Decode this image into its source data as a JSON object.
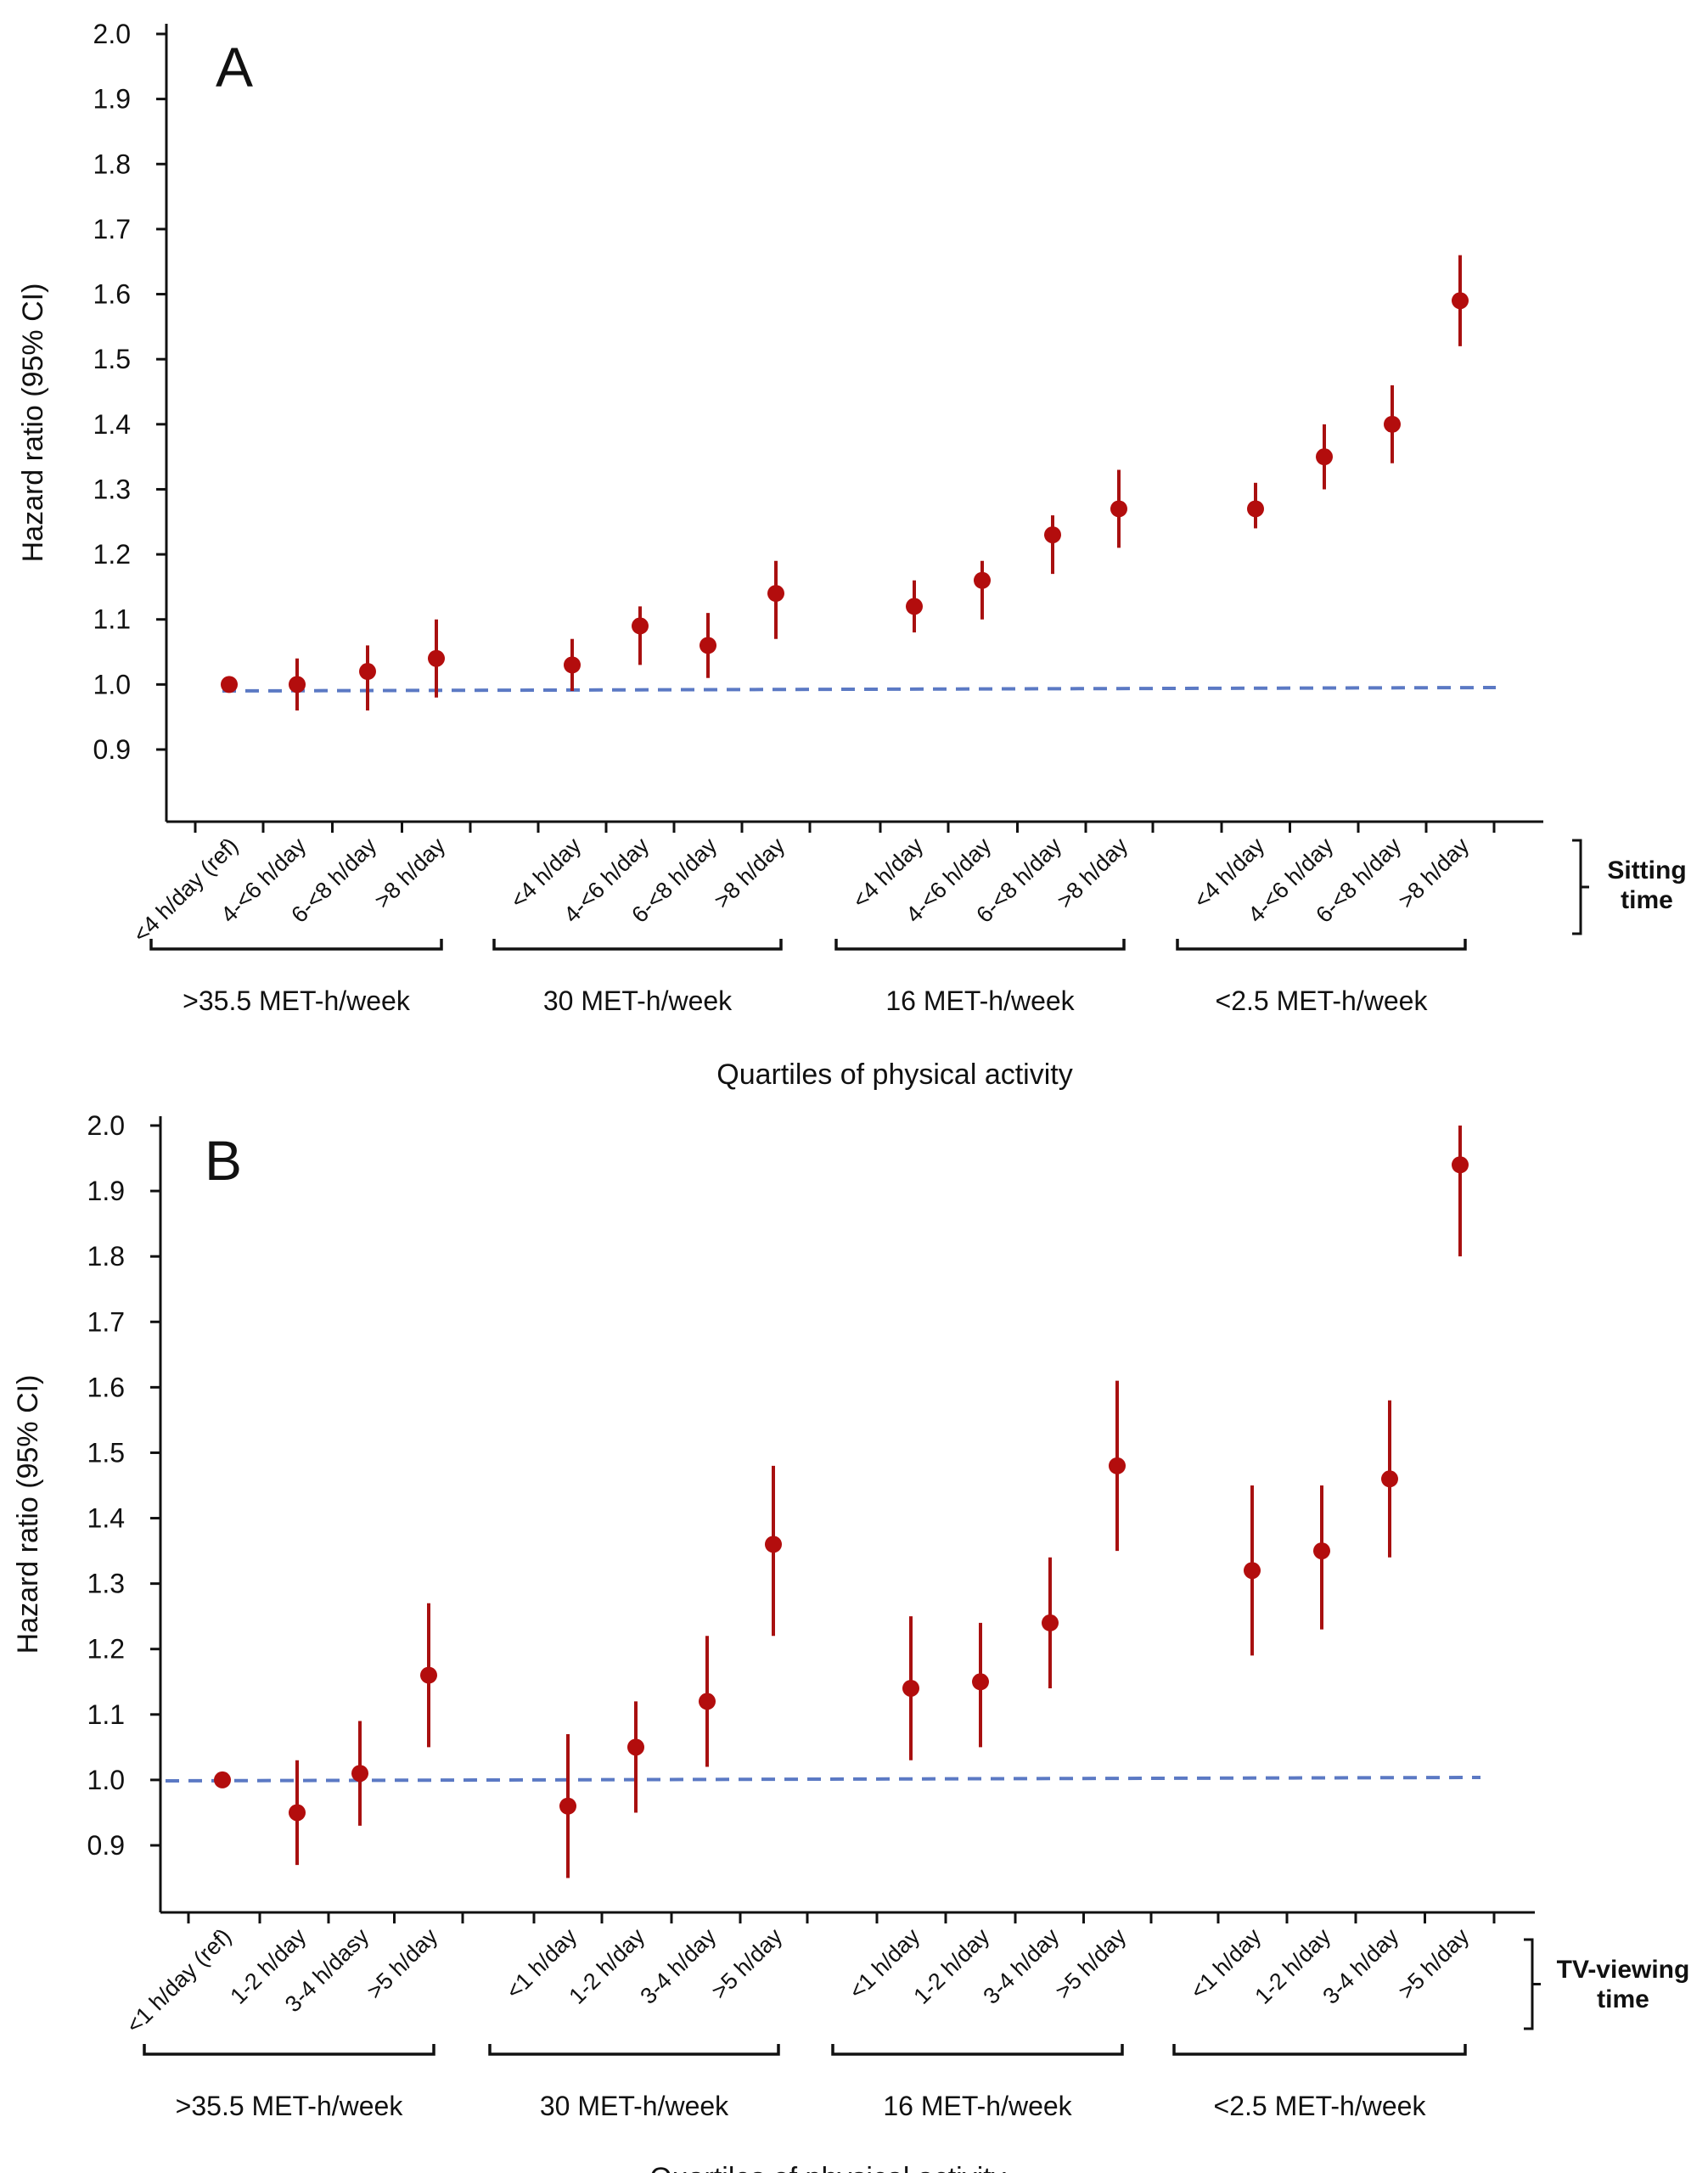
{
  "chart_data": [
    {
      "type": "scatter",
      "panel_label": "A",
      "ylabel": "Hazard ratio (95% CI)",
      "xlabel": "Quartiles of physical activity",
      "ylim": [
        0.9,
        2.0
      ],
      "yticks": [
        "0.9",
        "1.0",
        "1.1",
        "1.2",
        "1.3",
        "1.4",
        "1.5",
        "1.6",
        "1.7",
        "1.8",
        "1.9",
        "2.0"
      ],
      "reference_line": 1.0,
      "bracket_label": [
        "Sitting",
        "time"
      ],
      "groups": [
        {
          "label": ">35.5 MET-h/week",
          "points": [
            {
              "category": "<4 h/day (ref)",
              "hr": 1.0,
              "lower": null,
              "upper": null
            },
            {
              "category": "4-<6 h/day",
              "hr": 1.0,
              "lower": 0.96,
              "upper": 1.04
            },
            {
              "category": "6-<8 h/day",
              "hr": 1.02,
              "lower": 0.96,
              "upper": 1.06
            },
            {
              "category": ">8 h/day",
              "hr": 1.04,
              "lower": 0.98,
              "upper": 1.1
            }
          ]
        },
        {
          "label": "30 MET-h/week",
          "points": [
            {
              "category": "<4 h/day",
              "hr": 1.03,
              "lower": 0.99,
              "upper": 1.07
            },
            {
              "category": "4-<6 h/day",
              "hr": 1.09,
              "lower": 1.03,
              "upper": 1.12
            },
            {
              "category": "6-<8 h/day",
              "hr": 1.06,
              "lower": 1.01,
              "upper": 1.11
            },
            {
              "category": ">8 h/day",
              "hr": 1.14,
              "lower": 1.07,
              "upper": 1.19
            }
          ]
        },
        {
          "label": "16 MET-h/week",
          "points": [
            {
              "category": "<4 h/day",
              "hr": 1.12,
              "lower": 1.08,
              "upper": 1.16
            },
            {
              "category": "4-<6 h/day",
              "hr": 1.16,
              "lower": 1.1,
              "upper": 1.19
            },
            {
              "category": "6-<8 h/day",
              "hr": 1.23,
              "lower": 1.17,
              "upper": 1.26
            },
            {
              "category": ">8 h/day",
              "hr": 1.27,
              "lower": 1.21,
              "upper": 1.33
            }
          ]
        },
        {
          "label": "<2.5 MET-h/week",
          "points": [
            {
              "category": "<4 h/day",
              "hr": 1.27,
              "lower": 1.24,
              "upper": 1.31
            },
            {
              "category": "4-<6 h/day",
              "hr": 1.35,
              "lower": 1.3,
              "upper": 1.4
            },
            {
              "category": "6-<8 h/day",
              "hr": 1.4,
              "lower": 1.34,
              "upper": 1.46
            },
            {
              "category": ">8 h/day",
              "hr": 1.59,
              "lower": 1.52,
              "upper": 1.66
            }
          ]
        }
      ]
    },
    {
      "type": "scatter",
      "panel_label": "B",
      "ylabel": "Hazard ratio (95% CI)",
      "xlabel": "Quartiles of physical activity",
      "ylim": [
        0.9,
        2.0
      ],
      "yticks": [
        "0.9",
        "1.0",
        "1.1",
        "1.2",
        "1.3",
        "1.4",
        "1.5",
        "1.6",
        "1.7",
        "1.8",
        "1.9",
        "2.0"
      ],
      "reference_line": 1.0,
      "bracket_label": [
        "TV-viewing",
        "time"
      ],
      "groups": [
        {
          "label": ">35.5 MET-h/week",
          "points": [
            {
              "category": "<1 h/day (ref)",
              "hr": 1.0,
              "lower": null,
              "upper": null
            },
            {
              "category": "1-2 h/day",
              "hr": 0.95,
              "lower": 0.87,
              "upper": 1.03
            },
            {
              "category": "3-4 h/dasy",
              "hr": 1.01,
              "lower": 0.93,
              "upper": 1.09
            },
            {
              "category": ">5 h/day",
              "hr": 1.16,
              "lower": 1.05,
              "upper": 1.27
            }
          ]
        },
        {
          "label": "30 MET-h/week",
          "points": [
            {
              "category": "<1 h/day",
              "hr": 0.96,
              "lower": 0.85,
              "upper": 1.07
            },
            {
              "category": "1-2 h/day",
              "hr": 1.05,
              "lower": 0.95,
              "upper": 1.12
            },
            {
              "category": "3-4 h/day",
              "hr": 1.12,
              "lower": 1.02,
              "upper": 1.22
            },
            {
              "category": ">5 h/day",
              "hr": 1.36,
              "lower": 1.22,
              "upper": 1.48
            }
          ]
        },
        {
          "label": "16 MET-h/week",
          "points": [
            {
              "category": "<1 h/day",
              "hr": 1.14,
              "lower": 1.03,
              "upper": 1.25
            },
            {
              "category": "1-2 h/day",
              "hr": 1.15,
              "lower": 1.05,
              "upper": 1.24
            },
            {
              "category": "3-4 h/day",
              "hr": 1.24,
              "lower": 1.14,
              "upper": 1.34
            },
            {
              "category": ">5 h/day",
              "hr": 1.48,
              "lower": 1.35,
              "upper": 1.61
            }
          ]
        },
        {
          "label": "<2.5 MET-h/week",
          "points": [
            {
              "category": "<1 h/day",
              "hr": 1.32,
              "lower": 1.19,
              "upper": 1.45
            },
            {
              "category": "1-2 h/day",
              "hr": 1.35,
              "lower": 1.23,
              "upper": 1.45
            },
            {
              "category": "3-4 h/day",
              "hr": 1.46,
              "lower": 1.34,
              "upper": 1.58
            },
            {
              "category": ">5 h/day",
              "hr": 1.94,
              "lower": 1.8,
              "upper": 2.0
            }
          ]
        }
      ]
    }
  ],
  "colors": {
    "point": "#b30d0d",
    "error_bar": "#a81010",
    "reference_line": "#5b79c4",
    "axis": "#111111",
    "text": "#111111"
  }
}
